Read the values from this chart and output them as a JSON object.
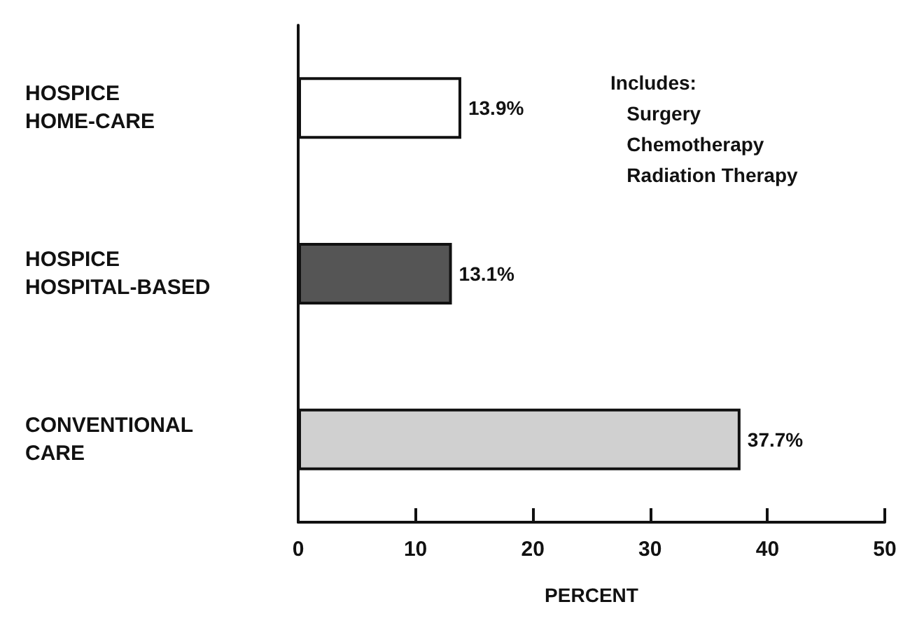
{
  "chart_data": {
    "type": "bar",
    "orientation": "horizontal",
    "categories": [
      "HOSPICE\nHOME-CARE",
      "HOSPICE\nHOSPITAL-BASED",
      "CONVENTIONAL\nCARE"
    ],
    "values": [
      13.9,
      13.1,
      37.7
    ],
    "colors": [
      "#ffffff",
      "#555555",
      "#d0d0d0"
    ],
    "value_labels": [
      "13.9%",
      "13.1%",
      "37.7%"
    ],
    "xlabel": "PERCENT",
    "xlim": [
      0,
      50
    ],
    "xticks": [
      0,
      10,
      20,
      30,
      40,
      50
    ],
    "grid": false,
    "annotations": [
      "Includes:\nSurgery\nChemotherapy\nRadiation Therapy"
    ]
  }
}
